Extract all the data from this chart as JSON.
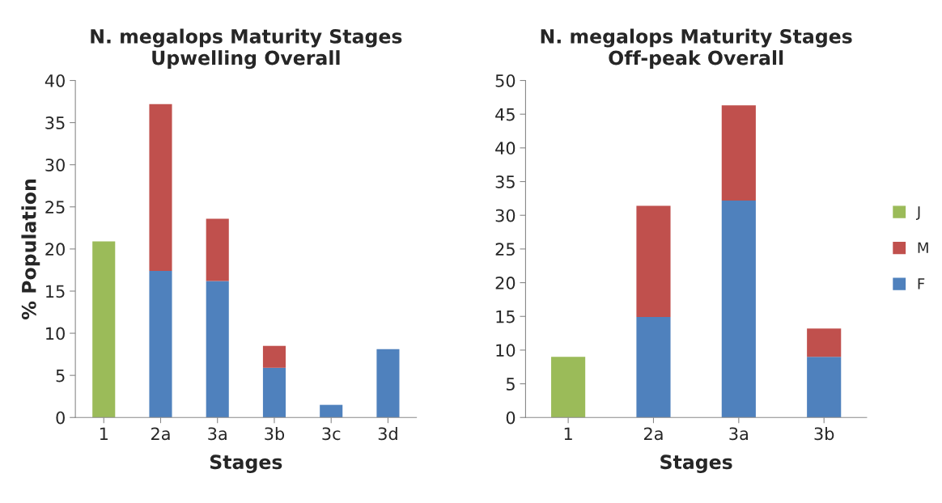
{
  "chart_data": [
    {
      "type": "bar",
      "title": "N. megalops Maturity Stages\nUpwelling Overall",
      "xlabel": "Stages",
      "ylabel": "% Population",
      "categories": [
        "1",
        "2a",
        "3a",
        "3b",
        "3c",
        "3d"
      ],
      "stacked": true,
      "ylim": [
        0,
        40
      ],
      "yticks": [
        0,
        5,
        10,
        15,
        20,
        25,
        30,
        35,
        40
      ],
      "grid": false,
      "series": [
        {
          "color": "#4f81bd",
          "values": [
            null,
            17.4,
            16.2,
            5.9,
            1.5,
            8.1
          ]
        },
        {
          "color": "#c0504d",
          "values": [
            null,
            19.8,
            7.4,
            2.6,
            null,
            null
          ]
        },
        {
          "color": "#9bbb59",
          "values": [
            20.9,
            null,
            null,
            null,
            null,
            null
          ]
        }
      ]
    },
    {
      "type": "bar",
      "title": "N. megalops Maturity Stages\nOff-peak Overall",
      "xlabel": "Stages",
      "categories": [
        "1",
        "2a",
        "3a",
        "3b"
      ],
      "stacked": true,
      "ylim": [
        0,
        50
      ],
      "yticks": [
        0,
        5,
        10,
        15,
        20,
        25,
        30,
        35,
        40,
        45,
        50
      ],
      "grid": false,
      "legend": "right",
      "series": [
        {
          "name": "F",
          "color": "#4f81bd",
          "values": [
            null,
            14.9,
            32.2,
            9.0
          ]
        },
        {
          "name": "M",
          "color": "#c0504d",
          "values": [
            null,
            16.5,
            14.1,
            4.2
          ]
        },
        {
          "name": "J",
          "color": "#9bbb59",
          "values": [
            9.0,
            null,
            null,
            null
          ]
        }
      ]
    }
  ]
}
